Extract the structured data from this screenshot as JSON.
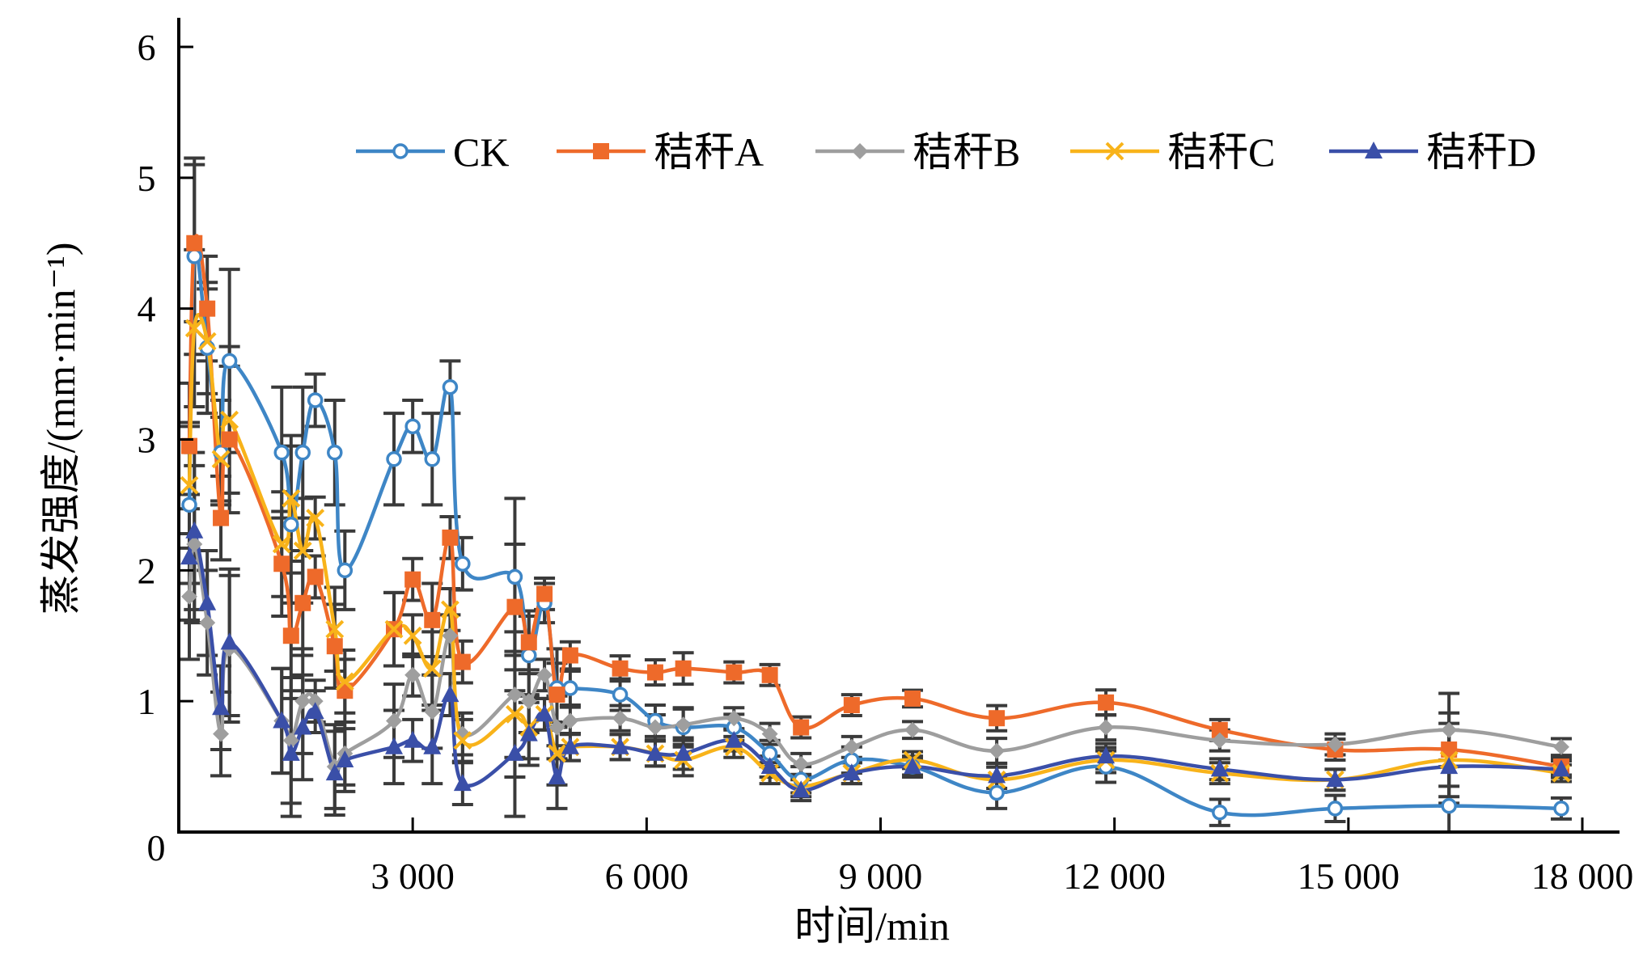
{
  "chart_data": {
    "type": "line",
    "title": "",
    "xlabel": "时间/min",
    "ylabel": "蒸发强度/(mm·min⁻¹)",
    "xlim": [
      0,
      18000
    ],
    "ylim": [
      0,
      6
    ],
    "xticks": [
      3000,
      6000,
      9000,
      12000,
      15000,
      18000
    ],
    "xtick_labels": [
      "3 000",
      "6 000",
      "9 000",
      "12 000",
      "15 000",
      "18 000"
    ],
    "yticks": [
      1,
      2,
      3,
      4,
      5,
      6
    ],
    "ytick_labels": [
      "1",
      "2",
      "3",
      "4",
      "5",
      "6"
    ],
    "origin_label": "0",
    "grid": false,
    "legend_position": "top",
    "x": [
      135,
      200,
      365,
      540,
      650,
      1320,
      1440,
      1590,
      1750,
      2000,
      2130,
      2760,
      3000,
      3250,
      3480,
      3640,
      4310,
      4490,
      4690,
      4850,
      5020,
      5660,
      6110,
      6470,
      7120,
      7580,
      7980,
      8630,
      9410,
      10490,
      11890,
      13350,
      14830,
      16290,
      17730
    ],
    "error": [
      0.6,
      0.75,
      0.5,
      0.4,
      0.7,
      0.5,
      0.6,
      0.5,
      0.2,
      0.4,
      0.3,
      0.35,
      0.2,
      0.35,
      0.2,
      0.2,
      0.6,
      0.3,
      0.15,
      0.3,
      0.13,
      0.12,
      0.12,
      0.15,
      0.1,
      0.1,
      0.1,
      0.1,
      0.08,
      0.12,
      0.12,
      0.1,
      0.1,
      0.35,
      0.08
    ],
    "series": [
      {
        "name": "CK",
        "color": "#3E86C6",
        "marker": "circle",
        "values": [
          2.5,
          4.4,
          3.7,
          2.9,
          3.6,
          2.9,
          2.35,
          2.9,
          3.3,
          2.9,
          2.0,
          2.85,
          3.1,
          2.85,
          3.4,
          2.05,
          1.95,
          1.35,
          1.75,
          1.1,
          1.1,
          1.05,
          0.85,
          0.8,
          0.8,
          0.6,
          0.4,
          0.55,
          0.5,
          0.3,
          0.5,
          0.15,
          0.18,
          0.2,
          0.18
        ]
      },
      {
        "name": "秸秆A",
        "color": "#EE6A2A",
        "marker": "square",
        "values": [
          2.95,
          4.5,
          4.0,
          2.4,
          3.0,
          2.05,
          1.5,
          1.75,
          1.95,
          1.42,
          1.08,
          1.55,
          1.93,
          1.62,
          2.25,
          1.3,
          1.72,
          1.45,
          1.82,
          1.05,
          1.35,
          1.25,
          1.22,
          1.25,
          1.22,
          1.2,
          0.8,
          0.97,
          1.02,
          0.87,
          0.99,
          0.78,
          0.63,
          0.63,
          0.5
        ]
      },
      {
        "name": "秸秆B",
        "color": "#9E9E9E",
        "marker": "diamond",
        "values": [
          1.8,
          2.2,
          1.6,
          0.75,
          1.4,
          0.85,
          0.7,
          1.0,
          1.0,
          0.5,
          0.6,
          0.85,
          1.2,
          0.92,
          1.5,
          0.75,
          1.05,
          1.0,
          1.2,
          0.8,
          0.85,
          0.87,
          0.8,
          0.82,
          0.87,
          0.75,
          0.52,
          0.65,
          0.78,
          0.62,
          0.8,
          0.7,
          0.67,
          0.78,
          0.65
        ]
      },
      {
        "name": "秸秆C",
        "color": "#F8B31A",
        "marker": "x",
        "values": [
          2.65,
          3.85,
          3.75,
          2.85,
          3.15,
          2.2,
          2.55,
          2.15,
          2.4,
          1.55,
          1.15,
          1.55,
          1.5,
          1.25,
          1.7,
          0.7,
          0.9,
          0.8,
          0.9,
          0.6,
          0.65,
          0.65,
          0.6,
          0.55,
          0.65,
          0.45,
          0.35,
          0.45,
          0.55,
          0.4,
          0.55,
          0.45,
          0.4,
          0.55,
          0.45
        ]
      },
      {
        "name": "秸秆D",
        "color": "#3A4FA8",
        "marker": "triangle",
        "values": [
          2.1,
          2.3,
          1.75,
          0.95,
          1.45,
          0.85,
          0.6,
          0.8,
          0.92,
          0.45,
          0.55,
          0.65,
          0.7,
          0.65,
          1.05,
          0.37,
          0.6,
          0.75,
          0.9,
          0.42,
          0.65,
          0.65,
          0.6,
          0.6,
          0.7,
          0.5,
          0.32,
          0.45,
          0.5,
          0.43,
          0.58,
          0.48,
          0.4,
          0.5,
          0.48
        ]
      }
    ]
  }
}
